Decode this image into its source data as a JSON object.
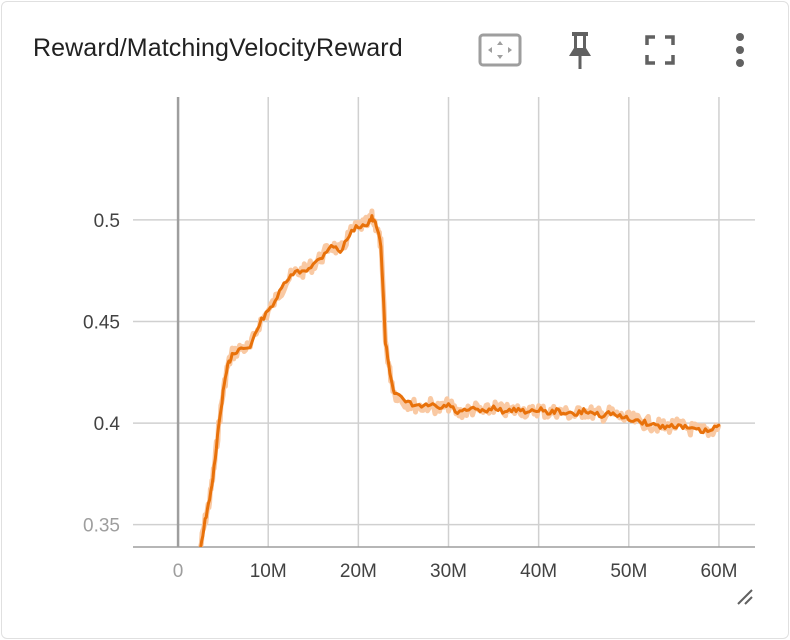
{
  "card": {
    "title": "Reward/MatchingVelocityReward"
  },
  "toolbar": {
    "icons": [
      "fit-domain-icon",
      "pin-icon",
      "fullscreen-icon",
      "more-vert-icon"
    ]
  },
  "colors": {
    "series": "#e8710a",
    "band": "#f9c9a3",
    "grid": "#d0d0d0",
    "axis": "#9e9e9e",
    "tick_text": "#424242",
    "tick_text_faded": "#9e9e9e"
  },
  "chart_data": {
    "type": "line",
    "title": "Reward/MatchingVelocityReward",
    "xlabel": "",
    "ylabel": "",
    "xlim": [
      -5000000,
      64000000
    ],
    "ylim": [
      0.339,
      0.5605
    ],
    "x_ticks": [
      0,
      10000000,
      20000000,
      30000000,
      40000000,
      50000000,
      60000000
    ],
    "x_tick_labels": [
      "0",
      "10M",
      "20M",
      "30M",
      "40M",
      "50M",
      "60M"
    ],
    "y_ticks": [
      0.35,
      0.4,
      0.45,
      0.5
    ],
    "y_tick_labels": [
      "0.35",
      "0.4",
      "0.45",
      "0.5"
    ],
    "grid": true,
    "legend": "none",
    "series": [
      {
        "x": [
          2500000,
          3000000,
          3500000,
          4000000,
          4500000,
          5000000,
          5500000,
          6000000,
          7000000,
          8000000,
          9000000,
          10000000,
          11000000,
          12000000,
          13000000,
          14000000,
          15000000,
          16000000,
          17000000,
          18000000,
          19000000,
          20000000,
          21000000,
          21500000,
          22000000,
          22500000,
          23000000,
          23500000,
          24000000,
          25000000,
          26000000,
          27000000,
          28000000,
          29000000,
          30000000,
          31000000,
          32000000,
          33000000,
          34000000,
          35000000,
          36000000,
          37000000,
          38000000,
          39000000,
          40000000,
          41000000,
          42000000,
          43000000,
          44000000,
          45000000,
          46000000,
          47000000,
          48000000,
          49000000,
          50000000,
          51000000,
          52000000,
          53000000,
          54000000,
          55000000,
          56000000,
          57000000,
          58000000,
          59000000,
          60000000
        ],
        "y": [
          0.339,
          0.352,
          0.362,
          0.378,
          0.398,
          0.415,
          0.428,
          0.434,
          0.437,
          0.437,
          0.449,
          0.455,
          0.462,
          0.47,
          0.474,
          0.475,
          0.478,
          0.482,
          0.488,
          0.484,
          0.493,
          0.497,
          0.498,
          0.501,
          0.497,
          0.488,
          0.44,
          0.425,
          0.415,
          0.411,
          0.409,
          0.408,
          0.409,
          0.407,
          0.409,
          0.405,
          0.406,
          0.407,
          0.405,
          0.408,
          0.406,
          0.406,
          0.407,
          0.405,
          0.407,
          0.405,
          0.406,
          0.405,
          0.404,
          0.406,
          0.405,
          0.404,
          0.405,
          0.403,
          0.402,
          0.401,
          0.4,
          0.399,
          0.398,
          0.399,
          0.398,
          0.397,
          0.396,
          0.396,
          0.399
        ]
      }
    ]
  }
}
